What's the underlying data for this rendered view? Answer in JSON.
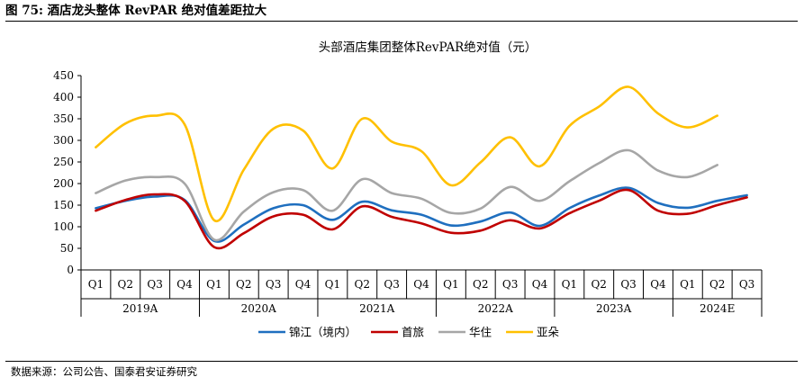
{
  "figure_label": "图 75: 酒店龙头整体 RevPAR 绝对值差距拉大",
  "source_note": "数据来源：公司公告、国泰君安证券研究",
  "chart_data": {
    "type": "line",
    "title": "头部酒店集团整体RevPAR绝对值（元）",
    "ylim": [
      0,
      450
    ],
    "yticks": [
      0,
      50,
      100,
      150,
      200,
      250,
      300,
      350,
      400,
      450
    ],
    "categories": [
      "Q1",
      "Q2",
      "Q3",
      "Q4",
      "Q1",
      "Q2",
      "Q3",
      "Q4",
      "Q1",
      "Q2",
      "Q3",
      "Q4",
      "Q1",
      "Q2",
      "Q3",
      "Q4",
      "Q1",
      "Q2",
      "Q3",
      "Q4",
      "Q1",
      "Q2",
      "Q3"
    ],
    "years": [
      {
        "label": "2019A",
        "count": 4
      },
      {
        "label": "2020A",
        "count": 4
      },
      {
        "label": "2021A",
        "count": 4
      },
      {
        "label": "2022A",
        "count": 4
      },
      {
        "label": "2023A",
        "count": 4
      },
      {
        "label": "2024E",
        "count": 3
      }
    ],
    "series": [
      {
        "name": "锦江（境内）",
        "color": "#1f6fbf",
        "values": [
          143,
          160,
          170,
          162,
          67,
          105,
          143,
          150,
          116,
          158,
          138,
          128,
          103,
          112,
          133,
          102,
          143,
          172,
          190,
          155,
          144,
          160,
          173
        ]
      },
      {
        "name": "首旅",
        "color": "#c00000",
        "values": [
          137,
          162,
          175,
          160,
          53,
          85,
          124,
          128,
          94,
          147,
          123,
          108,
          86,
          91,
          115,
          96,
          131,
          160,
          185,
          137,
          130,
          150,
          168
        ]
      },
      {
        "name": "华住",
        "color": "#a6a6a6",
        "values": [
          178,
          207,
          215,
          200,
          70,
          135,
          180,
          185,
          137,
          210,
          178,
          165,
          132,
          142,
          192,
          160,
          205,
          247,
          277,
          230,
          215,
          243,
          null
        ]
      },
      {
        "name": "亚朵",
        "color": "#ffc000",
        "values": [
          284,
          339,
          357,
          337,
          115,
          232,
          327,
          323,
          235,
          350,
          297,
          275,
          196,
          249,
          307,
          240,
          333,
          378,
          424,
          362,
          330,
          357,
          null
        ]
      }
    ],
    "legend": "bottom",
    "grid": false
  }
}
